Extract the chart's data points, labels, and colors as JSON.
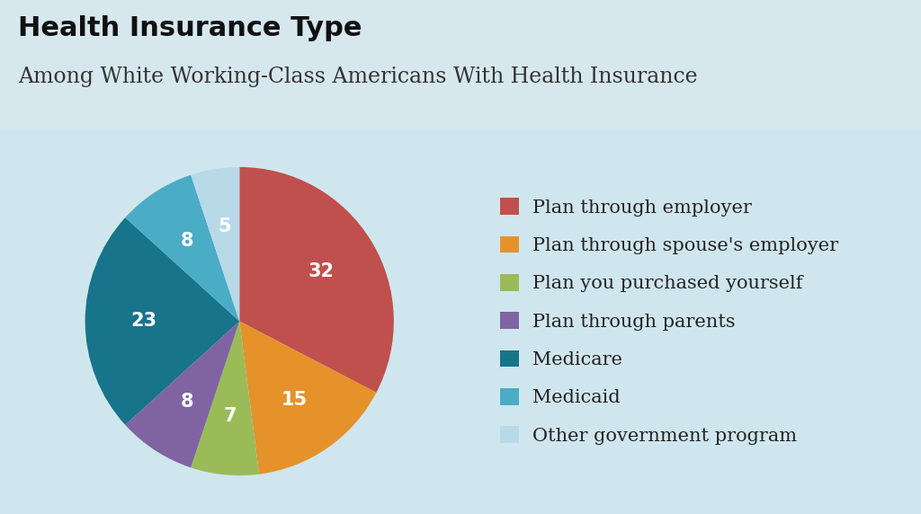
{
  "title": "Health Insurance Type",
  "subtitle": "Among White Working-Class Americans With Health Insurance",
  "labels": [
    "Plan through employer",
    "Plan through spouse's employer",
    "Plan you purchased yourself",
    "Plan through parents",
    "Medicare",
    "Medicaid",
    "Other government program"
  ],
  "values": [
    32,
    15,
    7,
    8,
    23,
    8,
    5
  ],
  "colors": [
    "#C0504D",
    "#E6922A",
    "#9BBB59",
    "#8064A2",
    "#17748A",
    "#4BACC6",
    "#B8D9E8"
  ],
  "background_color": "#D6E8EE",
  "title_fontsize": 22,
  "subtitle_fontsize": 17,
  "label_fontsize": 15,
  "legend_fontsize": 15,
  "startangle": 90,
  "title_color": "#111111",
  "subtitle_color": "#333333",
  "text_color": "#222222"
}
